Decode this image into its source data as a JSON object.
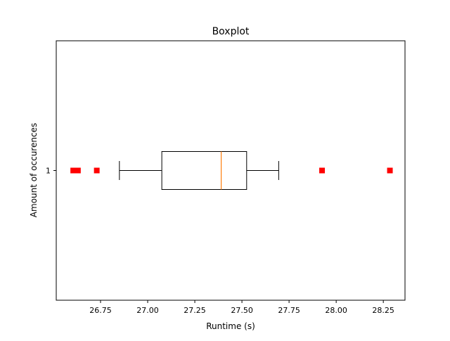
{
  "chart_data": {
    "type": "boxplot",
    "title": "Boxplot",
    "xlabel": "Runtime (s)",
    "ylabel": "Amount of occurences",
    "orientation": "horizontal",
    "xlim": [
      26.515,
      28.365
    ],
    "x_ticks": [
      26.75,
      27.0,
      27.25,
      27.5,
      27.75,
      28.0,
      28.25
    ],
    "x_tick_labels": [
      "26.75",
      "27.00",
      "27.25",
      "27.50",
      "27.75",
      "28.00",
      "28.25"
    ],
    "y_ticks": [
      1
    ],
    "y_tick_labels": [
      "1"
    ],
    "grid": false,
    "boxes": [
      {
        "position": 1,
        "whisker_low": 26.85,
        "q1": 27.075,
        "median": 27.39,
        "q3": 27.525,
        "whisker_high": 27.695,
        "outliers": [
          26.605,
          26.615,
          26.63,
          26.73,
          27.925,
          28.285
        ]
      }
    ],
    "colors": {
      "box": "#000000",
      "median": "#ff7f0e",
      "outlier": "#ff0000"
    },
    "outlier_marker": "square"
  }
}
